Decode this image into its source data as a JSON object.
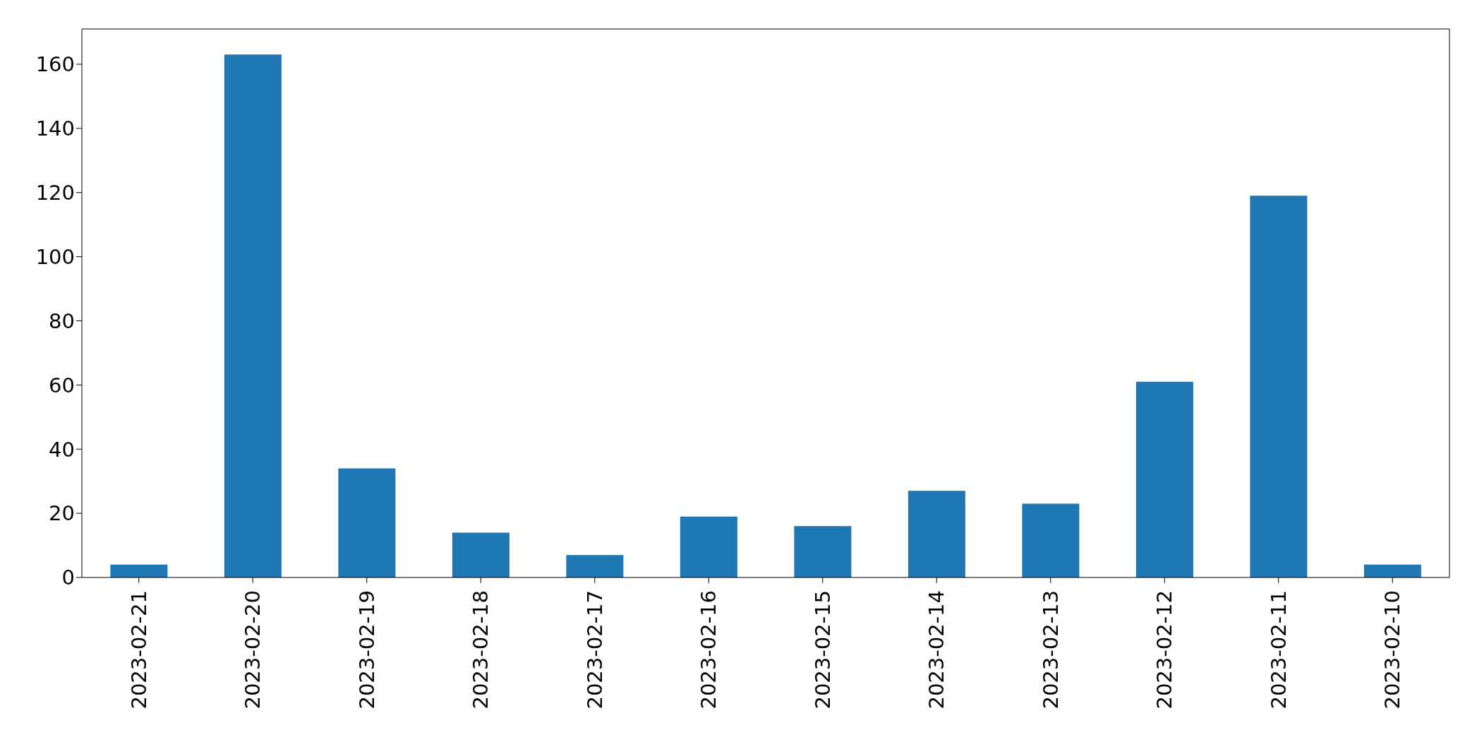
{
  "chart_data": {
    "type": "bar",
    "categories": [
      "2023-02-21",
      "2023-02-20",
      "2023-02-19",
      "2023-02-18",
      "2023-02-17",
      "2023-02-16",
      "2023-02-15",
      "2023-02-14",
      "2023-02-13",
      "2023-02-12",
      "2023-02-11",
      "2023-02-10"
    ],
    "values": [
      4,
      163,
      34,
      14,
      7,
      19,
      16,
      27,
      23,
      61,
      119,
      4
    ],
    "color": "#1f77b4",
    "ylim": [
      0,
      171
    ],
    "yticks": [
      0,
      20,
      40,
      60,
      80,
      100,
      120,
      140,
      160
    ],
    "grid": false
  }
}
